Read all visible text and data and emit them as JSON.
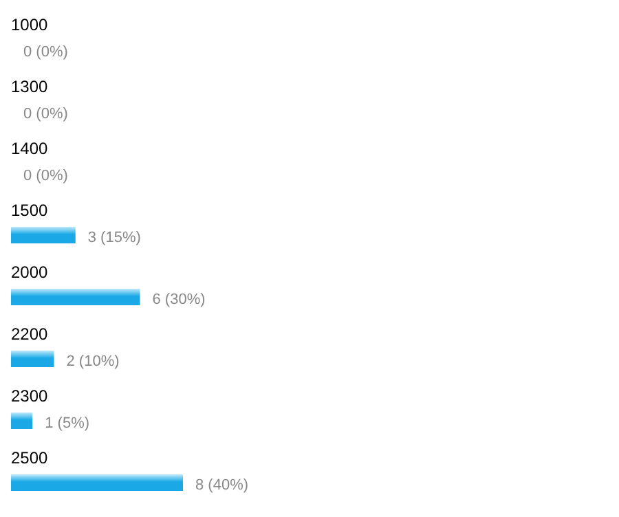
{
  "chart_data": {
    "type": "bar",
    "orientation": "horizontal",
    "categories": [
      "1000",
      "1300",
      "1400",
      "1500",
      "2000",
      "2200",
      "2300",
      "2500"
    ],
    "values": [
      0,
      0,
      0,
      3,
      6,
      2,
      1,
      8
    ],
    "color": "#1aa9e6",
    "value_labels": [
      "0 (0%)",
      "0 (0%)",
      "0 (0%)",
      "3 (15%)",
      "6 (30%)",
      "2 (10%)",
      "1 (5%)",
      "8 (40%)"
    ]
  }
}
